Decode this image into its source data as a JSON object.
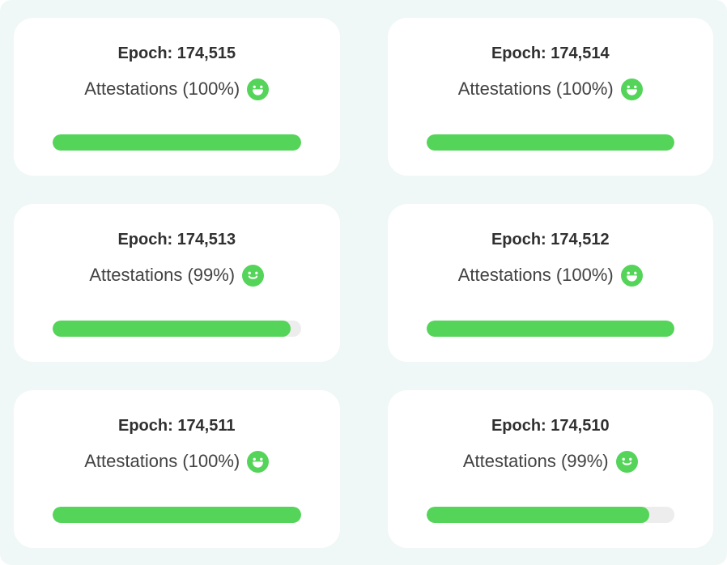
{
  "colors": {
    "page_bg": "#ffffff",
    "panel_bg": "#eff8f6",
    "green": "#55d45a",
    "track": "#ededed",
    "epoch_text": "#303030",
    "attestation_text": "#424242"
  },
  "cards": [
    {
      "epoch_label": "Epoch: 174,515",
      "attestations_label": "Attestations (100%)",
      "attestation_percent": 100,
      "progress_fill_percent": 100,
      "mood": "grin"
    },
    {
      "epoch_label": "Epoch: 174,514",
      "attestations_label": "Attestations (100%)",
      "attestation_percent": 100,
      "progress_fill_percent": 100,
      "mood": "grin"
    },
    {
      "epoch_label": "Epoch: 174,513",
      "attestations_label": "Attestations (99%)",
      "attestation_percent": 99,
      "progress_fill_percent": 96,
      "mood": "smile"
    },
    {
      "epoch_label": "Epoch: 174,512",
      "attestations_label": "Attestations (100%)",
      "attestation_percent": 100,
      "progress_fill_percent": 100,
      "mood": "grin"
    },
    {
      "epoch_label": "Epoch: 174,511",
      "attestations_label": "Attestations (100%)",
      "attestation_percent": 100,
      "progress_fill_percent": 100,
      "mood": "grin"
    },
    {
      "epoch_label": "Epoch: 174,510",
      "attestations_label": "Attestations (99%)",
      "attestation_percent": 99,
      "progress_fill_percent": 90,
      "mood": "smile"
    }
  ]
}
